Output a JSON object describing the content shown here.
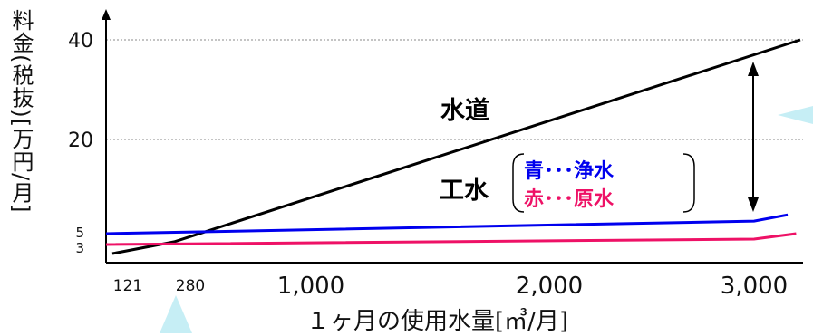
{
  "chart_data": {
    "type": "line",
    "ylabel": "料金(税抜)[万円/月]",
    "xlabel": "１ヶ月の使用水量[㎥/月]",
    "xlim": [
      100,
      3250
    ],
    "ylim": [
      0,
      40
    ],
    "x_ticks_major": [
      "1,000",
      "2,000",
      "3,000"
    ],
    "x_ticks_minor": [
      "121",
      "280"
    ],
    "y_ticks": [
      "40",
      "20",
      "5",
      "3"
    ],
    "y_tick_values": [
      40,
      20,
      5,
      3
    ],
    "grid": "dashed horizontal at 40 and 20",
    "series": [
      {
        "name": "水道",
        "color": "#000000",
        "points": [
          [
            121,
            0
          ],
          [
            280,
            3.5
          ],
          [
            3220,
            40
          ]
        ]
      },
      {
        "name": "浄水",
        "color": "#0000ee",
        "points": [
          [
            100,
            5
          ],
          [
            3000,
            7
          ],
          [
            3160,
            8
          ]
        ]
      },
      {
        "name": "原水",
        "color": "#ee1166",
        "points": [
          [
            100,
            3
          ],
          [
            3000,
            4
          ],
          [
            3200,
            5
          ]
        ]
      }
    ],
    "annotations": {
      "suido": "水道",
      "kousui": "工水",
      "blue_legend": "青･･･浄水",
      "red_legend": "赤･･･原水"
    }
  }
}
